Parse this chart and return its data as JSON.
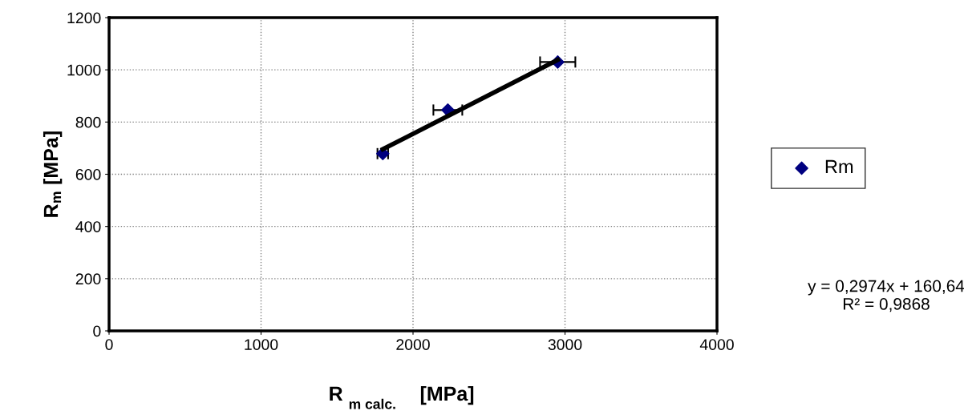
{
  "chart_data": {
    "type": "scatter",
    "xlabel": "R$_{m calc.}$ [MPa]",
    "ylabel": "R$_{m}$ [MPa]",
    "xlim": [
      0,
      4000
    ],
    "xticks": [
      0,
      1000,
      2000,
      3000,
      4000
    ],
    "ylim": [
      0,
      1200
    ],
    "yticks": [
      0,
      200,
      400,
      600,
      800,
      1000,
      1200
    ],
    "grid": true,
    "legend": "right",
    "series": [
      {
        "name": "Rm",
        "marker": "diamond",
        "color": "#000080",
        "x": [
          1801,
          2229,
          2952
        ],
        "values": [
          679,
          846,
          1030
        ],
        "xerrors": [
          35,
          95,
          116
        ]
      },
      {
        "type": "line",
        "marker": "none",
        "color": "#000000",
        "x": [
          1801,
          2952
        ],
        "values": [
          696,
          1038
        ]
      }
    ],
    "annotations": [
      "y = 0,2974x + 160,64\nR² = 0,9868"
    ]
  }
}
